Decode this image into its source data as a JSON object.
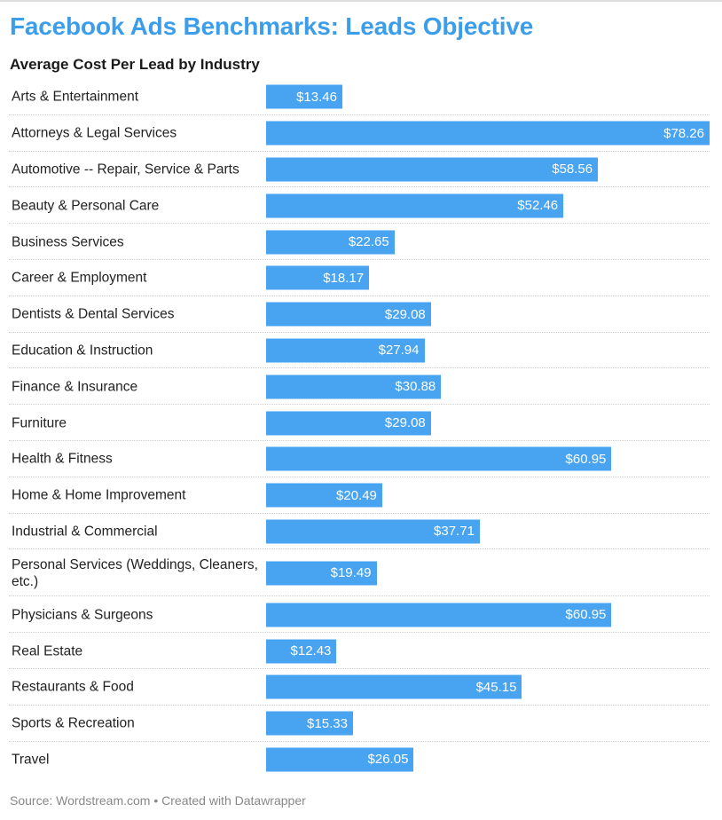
{
  "header": {
    "title": "Facebook Ads Benchmarks: Leads Objective"
  },
  "chart_data": {
    "type": "bar",
    "orientation": "horizontal",
    "title": "Facebook Ads Benchmarks: Leads Objective",
    "subtitle": "Average Cost Per Lead by Industry",
    "xlabel": "",
    "ylabel": "",
    "value_prefix": "$",
    "xlim": [
      0,
      78.26
    ],
    "bar_color": "#48a3f1",
    "categories": [
      "Arts & Entertainment",
      "Attorneys & Legal Services",
      "Automotive -- Repair, Service & Parts",
      "Beauty & Personal Care",
      "Business Services",
      "Career & Employment",
      "Dentists & Dental Services",
      "Education & Instruction",
      "Finance & Insurance",
      "Furniture",
      "Health & Fitness",
      "Home & Home Improvement",
      "Industrial & Commercial",
      "Personal Services (Weddings, Cleaners, etc.)",
      "Physicians & Surgeons",
      "Real Estate",
      "Restaurants & Food",
      "Sports & Recreation",
      "Travel"
    ],
    "values": [
      13.46,
      78.26,
      58.56,
      52.46,
      22.65,
      18.17,
      29.08,
      27.94,
      30.88,
      29.08,
      60.95,
      20.49,
      37.71,
      19.49,
      60.95,
      12.43,
      45.15,
      15.33,
      26.05
    ],
    "value_labels": [
      "$13.46",
      "$78.26",
      "$58.56",
      "$52.46",
      "$22.65",
      "$18.17",
      "$29.08",
      "$27.94",
      "$30.88",
      "$29.08",
      "$60.95",
      "$20.49",
      "$37.71",
      "$19.49",
      "$60.95",
      "$12.43",
      "$45.15",
      "$15.33",
      "$26.05"
    ]
  },
  "footer": {
    "source": "Source: Wordstream.com • Created with Datawrapper"
  },
  "colors": {
    "title": "#3c9eeb",
    "bar": "#48a3f1",
    "value_text": "#ffffff"
  }
}
